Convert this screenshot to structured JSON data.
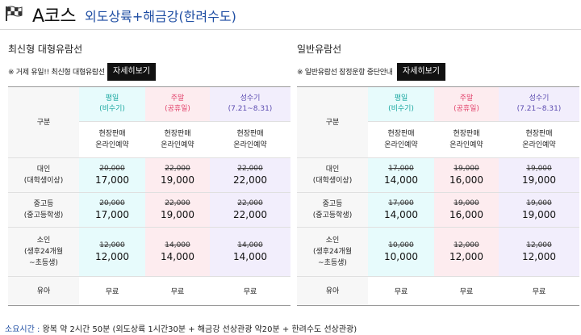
{
  "header": {
    "course": "A코스",
    "route": "외도상륙+해금강(한려수도)"
  },
  "panels": [
    {
      "title": "최신형 대형유람선",
      "notice": "※ 거제 유일!! 최신형 대형유람선",
      "button": "자세히보기",
      "corner_label": "구분",
      "columns": [
        {
          "name": "평일",
          "sub": "(비수기)"
        },
        {
          "name": "주말",
          "sub": "(공휴일)"
        },
        {
          "name": "성수기",
          "sub": "(7.21~8.31)"
        }
      ],
      "booking": [
        "현장판매",
        "온라인예약"
      ],
      "rows": [
        {
          "label1": "대인",
          "label2": "(대학생이상)",
          "label3": "",
          "prices": [
            {
              "old": "20,000",
              "new": "17,000"
            },
            {
              "old": "22,000",
              "new": "19,000"
            },
            {
              "old": "22,000",
              "new": "22,000"
            }
          ]
        },
        {
          "label1": "중고등",
          "label2": "(중고등학생)",
          "label3": "",
          "prices": [
            {
              "old": "20,000",
              "new": "17,000"
            },
            {
              "old": "22,000",
              "new": "19,000"
            },
            {
              "old": "22,000",
              "new": "22,000"
            }
          ]
        },
        {
          "label1": "소인",
          "label2": "(생후24개월",
          "label3": "~초등생)",
          "prices": [
            {
              "old": "12,000",
              "new": "12,000"
            },
            {
              "old": "14,000",
              "new": "14,000"
            },
            {
              "old": "14,000",
              "new": "14,000"
            }
          ]
        }
      ],
      "infant": {
        "label": "유아",
        "values": [
          "무료",
          "무료",
          "무료"
        ]
      }
    },
    {
      "title": "일반유람선",
      "notice": "※ 일반유람선 잠정운항 중단안내",
      "button": "자세히보기",
      "corner_label": "구분",
      "columns": [
        {
          "name": "평일",
          "sub": "(비수기)"
        },
        {
          "name": "주말",
          "sub": "(공휴일)"
        },
        {
          "name": "성수기",
          "sub": "(7.21~8.31)"
        }
      ],
      "booking": [
        "현장판매",
        "온라인예약"
      ],
      "rows": [
        {
          "label1": "대인",
          "label2": "(대학생이상)",
          "label3": "",
          "prices": [
            {
              "old": "17,000",
              "new": "14,000"
            },
            {
              "old": "19,000",
              "new": "16,000"
            },
            {
              "old": "19,000",
              "new": "19,000"
            }
          ]
        },
        {
          "label1": "중고등",
          "label2": "(중고등학생)",
          "label3": "",
          "prices": [
            {
              "old": "17,000",
              "new": "14,000"
            },
            {
              "old": "19,000",
              "new": "16,000"
            },
            {
              "old": "19,000",
              "new": "19,000"
            }
          ]
        },
        {
          "label1": "소인",
          "label2": "(생후24개월",
          "label3": "~초등생)",
          "prices": [
            {
              "old": "10,000",
              "new": "10,000"
            },
            {
              "old": "12,000",
              "new": "12,000"
            },
            {
              "old": "12,000",
              "new": "12,000"
            }
          ]
        }
      ],
      "infant": {
        "label": "유아",
        "values": [
          "무료",
          "무료",
          "무료"
        ]
      }
    }
  ],
  "footer": {
    "key": "소요시간 :",
    "text": " 왕복 약 2시간 50분 (외도상륙 1시간30분 + 해금강 선상관광 약20분 + 한려수도 선상관광)"
  },
  "colors": {
    "accent": "#1f4ea3",
    "weekday": "#1aa7a0",
    "weekend": "#e2456d",
    "peak": "#5b4bb0"
  },
  "icons": {
    "flag": "checkered-flag-icon"
  }
}
